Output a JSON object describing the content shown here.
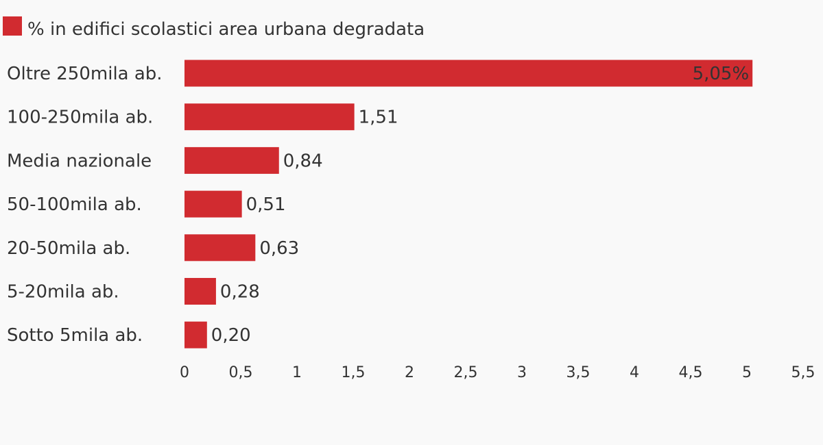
{
  "chart_data": {
    "type": "bar",
    "orientation": "horizontal",
    "legend": {
      "position": "top-left",
      "entries": [
        {
          "label": "% in edifici scolastici area urbana degradata",
          "color": "#d12b30"
        }
      ]
    },
    "series": [
      {
        "name": "% in edifici scolastici area urbana degradata",
        "color": "#d12b30",
        "values": [
          5.05,
          1.51,
          0.84,
          0.51,
          0.63,
          0.28,
          0.2
        ],
        "value_labels": [
          "5,05%",
          "1,51",
          "0,84",
          "0,51",
          "0,63",
          "0,28",
          "0,20"
        ]
      }
    ],
    "categories": [
      "Oltre 250mila ab.",
      "100-250mila ab.",
      "Media nazionale",
      "50-100mila ab.",
      "20-50mila ab.",
      "5-20mila ab.",
      "Sotto 5mila ab."
    ],
    "x_axis": {
      "range": [
        0,
        5.5
      ],
      "ticks": [
        0,
        0.5,
        1,
        1.5,
        2,
        2.5,
        3,
        3.5,
        4,
        4.5,
        5,
        5.5
      ],
      "tick_labels": [
        "0",
        "0,5",
        "1",
        "1,5",
        "2",
        "2,5",
        "3",
        "3,5",
        "4",
        "4,5",
        "5",
        "5,5"
      ]
    },
    "grid": false
  }
}
